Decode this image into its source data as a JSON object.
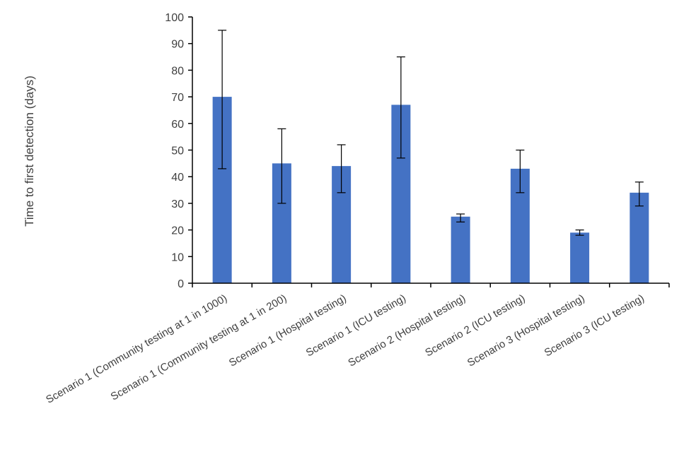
{
  "chart_data": {
    "type": "bar",
    "title": "",
    "xlabel": "",
    "ylabel": "Time to first detection (days)",
    "ylim": [
      0,
      100
    ],
    "yticks": [
      0,
      10,
      20,
      30,
      40,
      50,
      60,
      70,
      80,
      90,
      100
    ],
    "grid": false,
    "legend": "none",
    "bar_color": "#4472C4",
    "categories": [
      "Scenario 1 (Community testing at 1 in 1000)",
      "Scenario 1 (Community testing at 1 in 200)",
      "Scenario 1 (Hospital testing)",
      "Scenario 1 (ICU testing)",
      "Scenario 2 (Hospital testing)",
      "Scenario 2 (ICU testing)",
      "Scenario 3 (Hospital testing)",
      "Scenario 3 (ICU testing)"
    ],
    "values": [
      70,
      45,
      44,
      67,
      25,
      43,
      19,
      34
    ],
    "error_low": [
      43,
      30,
      34,
      47,
      23,
      34,
      18,
      29
    ],
    "error_high": [
      95,
      58,
      52,
      85,
      26,
      50,
      20,
      38
    ]
  }
}
